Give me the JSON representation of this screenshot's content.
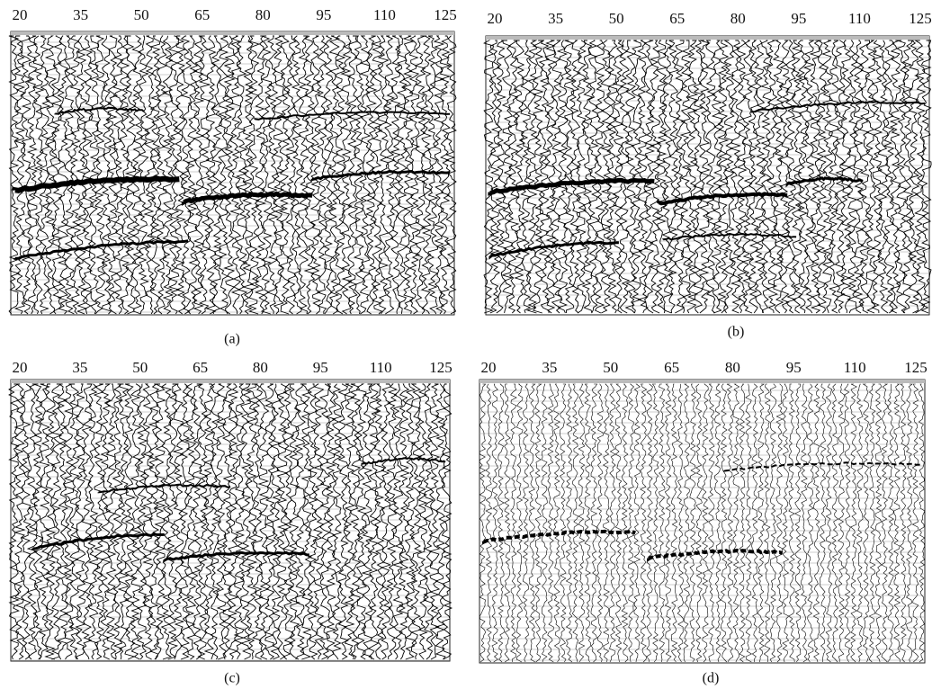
{
  "panels": [
    {
      "caption": "(a)",
      "ticks": [
        20,
        35,
        50,
        65,
        80,
        95,
        110,
        125
      ]
    },
    {
      "caption": "(b)",
      "ticks": [
        20,
        35,
        50,
        65,
        80,
        95,
        110,
        125
      ]
    },
    {
      "caption": "(c)",
      "ticks": [
        20,
        35,
        50,
        65,
        80,
        95,
        110,
        125
      ]
    },
    {
      "caption": "(d)",
      "ticks": [
        20,
        35,
        50,
        65,
        80,
        95,
        110,
        125
      ]
    }
  ]
}
